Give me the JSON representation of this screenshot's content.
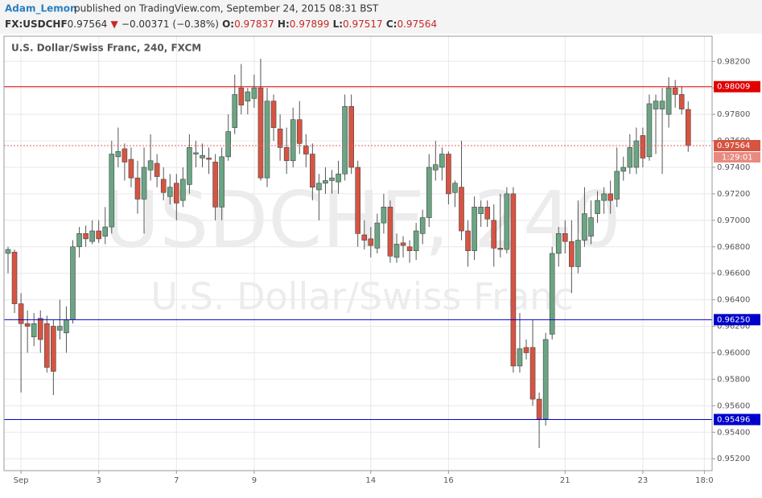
{
  "header": {
    "author": "Adam_Lemon",
    "published": "published on TradingView.com, September 24, 2015 08:31 BST",
    "symbol": "FX:USDCHF",
    "last": "0.97564",
    "arrow": "▼",
    "change": "−0.00371 (−0.38%)",
    "o_label": "O:",
    "o": "0.97837",
    "h_label": "H:",
    "h": "0.97899",
    "l_label": "L:",
    "l": "0.97517",
    "c_label": "C:",
    "c": "0.97564"
  },
  "chart_data": {
    "type": "candlestick",
    "title": "U.S. Dollar/Swiss Franc, 240, FXCM",
    "watermark": "USDCHF, 240",
    "watermark_sub": "U.S. Dollar/Swiss Franc",
    "countdown": "1:29:01",
    "up_color": "#6ba583",
    "down_color": "#d75442",
    "ylim": [
      0.9511,
      0.9839
    ],
    "yticks": [
      {
        "value": 0.982,
        "label": "0.98200"
      },
      {
        "value": 0.98,
        "label": "0.98000"
      },
      {
        "value": 0.978,
        "label": "0.97800"
      },
      {
        "value": 0.976,
        "label": "0.97600"
      },
      {
        "value": 0.974,
        "label": "0.97400"
      },
      {
        "value": 0.972,
        "label": "0.97200"
      },
      {
        "value": 0.97,
        "label": "0.97000"
      },
      {
        "value": 0.968,
        "label": "0.96800"
      },
      {
        "value": 0.966,
        "label": "0.96600"
      },
      {
        "value": 0.964,
        "label": "0.96400"
      },
      {
        "value": 0.962,
        "label": "0.96200"
      },
      {
        "value": 0.96,
        "label": "0.96000"
      },
      {
        "value": 0.958,
        "label": "0.95800"
      },
      {
        "value": 0.956,
        "label": "0.95600"
      },
      {
        "value": 0.954,
        "label": "0.95400"
      },
      {
        "value": 0.952,
        "label": "0.95200"
      }
    ],
    "xticks": [
      {
        "value": 2,
        "label": "Sep"
      },
      {
        "value": 14,
        "label": "3"
      },
      {
        "value": 26,
        "label": "7"
      },
      {
        "value": 38,
        "label": "9"
      },
      {
        "value": 56,
        "label": "14"
      },
      {
        "value": 68,
        "label": "16"
      },
      {
        "value": 86,
        "label": "21"
      },
      {
        "value": 98,
        "label": "23"
      },
      {
        "value": 107.5,
        "label": "18:0"
      }
    ],
    "grid": true,
    "lines": [
      {
        "value": 0.98009,
        "color": "#e00000",
        "style": "solid"
      },
      {
        "value": 0.97564,
        "color": "#e06666",
        "style": "dotted"
      },
      {
        "value": 0.9625,
        "label": "0.96250",
        "color": "#0000cc",
        "style": "solid"
      },
      {
        "value": 0.95496,
        "color": "#0000cc",
        "style": "solid"
      }
    ],
    "candles": [
      [
        0.9675,
        0.968,
        0.966,
        0.9678
      ],
      [
        0.9676,
        0.9678,
        0.963,
        0.9637
      ],
      [
        0.9637,
        0.9645,
        0.957,
        0.9622
      ],
      [
        0.9622,
        0.9632,
        0.96,
        0.962
      ],
      [
        0.9612,
        0.963,
        0.9605,
        0.9622
      ],
      [
        0.9626,
        0.9632,
        0.96,
        0.961
      ],
      [
        0.9622,
        0.9628,
        0.9585,
        0.9589
      ],
      [
        0.962,
        0.9625,
        0.9568,
        0.9586
      ],
      [
        0.9617,
        0.964,
        0.961,
        0.962
      ],
      [
        0.9615,
        0.9635,
        0.96,
        0.9625
      ],
      [
        0.9625,
        0.9685,
        0.9622,
        0.968
      ],
      [
        0.968,
        0.9695,
        0.9672,
        0.969
      ],
      [
        0.969,
        0.9696,
        0.968,
        0.9686
      ],
      [
        0.9684,
        0.97,
        0.9682,
        0.9692
      ],
      [
        0.9692,
        0.97,
        0.9683,
        0.9686
      ],
      [
        0.9688,
        0.971,
        0.9682,
        0.9695
      ],
      [
        0.9695,
        0.976,
        0.969,
        0.975
      ],
      [
        0.9748,
        0.977,
        0.974,
        0.9752
      ],
      [
        0.9754,
        0.9758,
        0.973,
        0.9744
      ],
      [
        0.9746,
        0.9755,
        0.9725,
        0.9732
      ],
      [
        0.9732,
        0.9745,
        0.9705,
        0.9716
      ],
      [
        0.9716,
        0.9755,
        0.969,
        0.974
      ],
      [
        0.9738,
        0.9765,
        0.973,
        0.9745
      ],
      [
        0.9743,
        0.975,
        0.9725,
        0.9733
      ],
      [
        0.9731,
        0.974,
        0.9715,
        0.9721
      ],
      [
        0.9718,
        0.9735,
        0.9712,
        0.9725
      ],
      [
        0.9728,
        0.9735,
        0.97,
        0.9713
      ],
      [
        0.9715,
        0.974,
        0.971,
        0.9731
      ],
      [
        0.9727,
        0.9765,
        0.972,
        0.9755
      ],
      [
        0.975,
        0.976,
        0.974,
        0.9751
      ],
      [
        0.9747,
        0.9758,
        0.974,
        0.9749
      ],
      [
        0.9747,
        0.9755,
        0.9735,
        0.9746
      ],
      [
        0.9744,
        0.975,
        0.97,
        0.971
      ],
      [
        0.971,
        0.9755,
        0.97,
        0.9748
      ],
      [
        0.9748,
        0.978,
        0.9745,
        0.9767
      ],
      [
        0.977,
        0.981,
        0.9765,
        0.9795
      ],
      [
        0.98,
        0.9818,
        0.978,
        0.9787
      ],
      [
        0.979,
        0.98,
        0.978,
        0.9797
      ],
      [
        0.9792,
        0.981,
        0.9785,
        0.98
      ],
      [
        0.98,
        0.9822,
        0.973,
        0.9732
      ],
      [
        0.9732,
        0.98,
        0.9725,
        0.979
      ],
      [
        0.979,
        0.9795,
        0.976,
        0.977
      ],
      [
        0.9769,
        0.978,
        0.9745,
        0.9755
      ],
      [
        0.9755,
        0.977,
        0.9735,
        0.9745
      ],
      [
        0.9745,
        0.9785,
        0.974,
        0.9776
      ],
      [
        0.9776,
        0.979,
        0.975,
        0.9758
      ],
      [
        0.9756,
        0.9765,
        0.974,
        0.975
      ],
      [
        0.975,
        0.9758,
        0.9715,
        0.9725
      ],
      [
        0.9723,
        0.9735,
        0.97,
        0.9728
      ],
      [
        0.9728,
        0.974,
        0.972,
        0.973
      ],
      [
        0.973,
        0.9738,
        0.972,
        0.9732
      ],
      [
        0.9729,
        0.9745,
        0.972,
        0.9735
      ],
      [
        0.9735,
        0.9795,
        0.973,
        0.9786
      ],
      [
        0.9786,
        0.9795,
        0.9735,
        0.974
      ],
      [
        0.974,
        0.9745,
        0.968,
        0.969
      ],
      [
        0.9689,
        0.97,
        0.9678,
        0.9685
      ],
      [
        0.9686,
        0.9695,
        0.9672,
        0.9681
      ],
      [
        0.9679,
        0.9705,
        0.9675,
        0.9698
      ],
      [
        0.9698,
        0.972,
        0.969,
        0.971
      ],
      [
        0.971,
        0.9715,
        0.9668,
        0.9673
      ],
      [
        0.9672,
        0.969,
        0.9668,
        0.9682
      ],
      [
        0.9683,
        0.9688,
        0.9672,
        0.9681
      ],
      [
        0.968,
        0.9685,
        0.9668,
        0.9677
      ],
      [
        0.9677,
        0.9698,
        0.967,
        0.9692
      ],
      [
        0.969,
        0.9708,
        0.9682,
        0.9702
      ],
      [
        0.9702,
        0.975,
        0.9695,
        0.974
      ],
      [
        0.9738,
        0.976,
        0.973,
        0.9742
      ],
      [
        0.974,
        0.9755,
        0.973,
        0.975
      ],
      [
        0.975,
        0.9752,
        0.9712,
        0.972
      ],
      [
        0.9721,
        0.973,
        0.971,
        0.9728
      ],
      [
        0.9725,
        0.976,
        0.9685,
        0.9692
      ],
      [
        0.9692,
        0.97,
        0.9665,
        0.9677
      ],
      [
        0.9677,
        0.9718,
        0.967,
        0.971
      ],
      [
        0.9705,
        0.9715,
        0.9695,
        0.971
      ],
      [
        0.971,
        0.9715,
        0.9695,
        0.9701
      ],
      [
        0.97,
        0.9712,
        0.9665,
        0.9679
      ],
      [
        0.9679,
        0.972,
        0.9672,
        0.9678
      ],
      [
        0.9678,
        0.9725,
        0.9675,
        0.972
      ],
      [
        0.972,
        0.9725,
        0.9585,
        0.959
      ],
      [
        0.959,
        0.963,
        0.9585,
        0.9603
      ],
      [
        0.9604,
        0.961,
        0.9595,
        0.96
      ],
      [
        0.9604,
        0.9625,
        0.956,
        0.9565
      ],
      [
        0.9565,
        0.957,
        0.9528,
        0.955
      ],
      [
        0.955,
        0.9615,
        0.9545,
        0.961
      ],
      [
        0.9614,
        0.968,
        0.961,
        0.9675
      ],
      [
        0.9675,
        0.9695,
        0.9665,
        0.969
      ],
      [
        0.969,
        0.97,
        0.9675,
        0.9684
      ],
      [
        0.9684,
        0.97,
        0.9645,
        0.9665
      ],
      [
        0.9665,
        0.9715,
        0.966,
        0.9685
      ],
      [
        0.9685,
        0.9725,
        0.968,
        0.9705
      ],
      [
        0.9688,
        0.9715,
        0.9682,
        0.9702
      ],
      [
        0.9705,
        0.9722,
        0.9698,
        0.9715
      ],
      [
        0.9715,
        0.9725,
        0.9705,
        0.972
      ],
      [
        0.972,
        0.973,
        0.9705,
        0.9715
      ],
      [
        0.9716,
        0.9755,
        0.971,
        0.9737
      ],
      [
        0.9737,
        0.9748,
        0.973,
        0.974
      ],
      [
        0.974,
        0.9765,
        0.9735,
        0.9755
      ],
      [
        0.974,
        0.977,
        0.9735,
        0.976
      ],
      [
        0.9764,
        0.977,
        0.974,
        0.9747
      ],
      [
        0.9748,
        0.9795,
        0.9745,
        0.9788
      ],
      [
        0.9784,
        0.9795,
        0.975,
        0.979
      ],
      [
        0.9784,
        0.98,
        0.9735,
        0.979
      ],
      [
        0.978,
        0.9808,
        0.977,
        0.98
      ],
      [
        0.98,
        0.9806,
        0.9785,
        0.9795
      ],
      [
        0.9795,
        0.98009,
        0.978,
        0.9784
      ],
      [
        0.97837,
        0.97899,
        0.97517,
        0.97564
      ]
    ]
  }
}
